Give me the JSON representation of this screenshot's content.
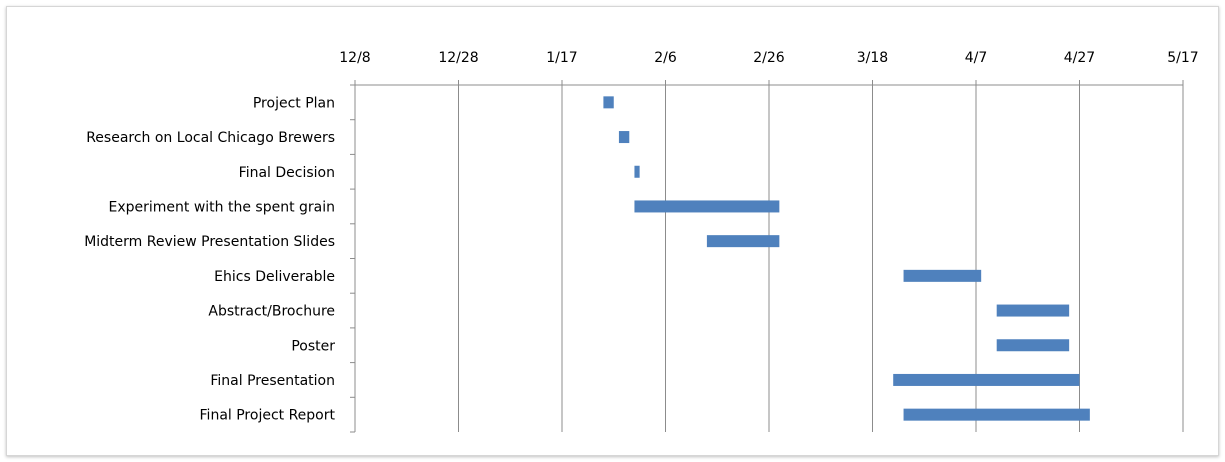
{
  "chart_data": {
    "type": "bar",
    "subtype": "gantt",
    "title": "",
    "xlabel": "",
    "ylabel": "",
    "x_axis_position": "top",
    "x_ticks": [
      "12/8",
      "12/28",
      "1/17",
      "2/6",
      "2/26",
      "3/18",
      "4/7",
      "4/27",
      "5/17"
    ],
    "xlim": [
      "12/8",
      "5/17"
    ],
    "grid": "vertical",
    "legend": "none",
    "bar_color": "#4f81bd",
    "tasks": [
      {
        "name": "Project Plan",
        "start": "1/25",
        "end": "1/27"
      },
      {
        "name": "Research on Local Chicago Brewers",
        "start": "1/28",
        "end": "1/30"
      },
      {
        "name": "Final Decision",
        "start": "1/31",
        "end": "2/1"
      },
      {
        "name": "Experiment with the spent grain",
        "start": "1/31",
        "end": "2/28"
      },
      {
        "name": "Midterm Review Presentation Slides",
        "start": "2/14",
        "end": "2/28"
      },
      {
        "name": "Ehics Deliverable",
        "start": "3/24",
        "end": "4/8"
      },
      {
        "name": "Abstract/Brochure",
        "start": "4/11",
        "end": "4/25"
      },
      {
        "name": "Poster",
        "start": "4/11",
        "end": "4/25"
      },
      {
        "name": "Final Presentation",
        "start": "3/22",
        "end": "4/27"
      },
      {
        "name": "Final Project Report",
        "start": "3/24",
        "end": "4/29"
      }
    ]
  }
}
